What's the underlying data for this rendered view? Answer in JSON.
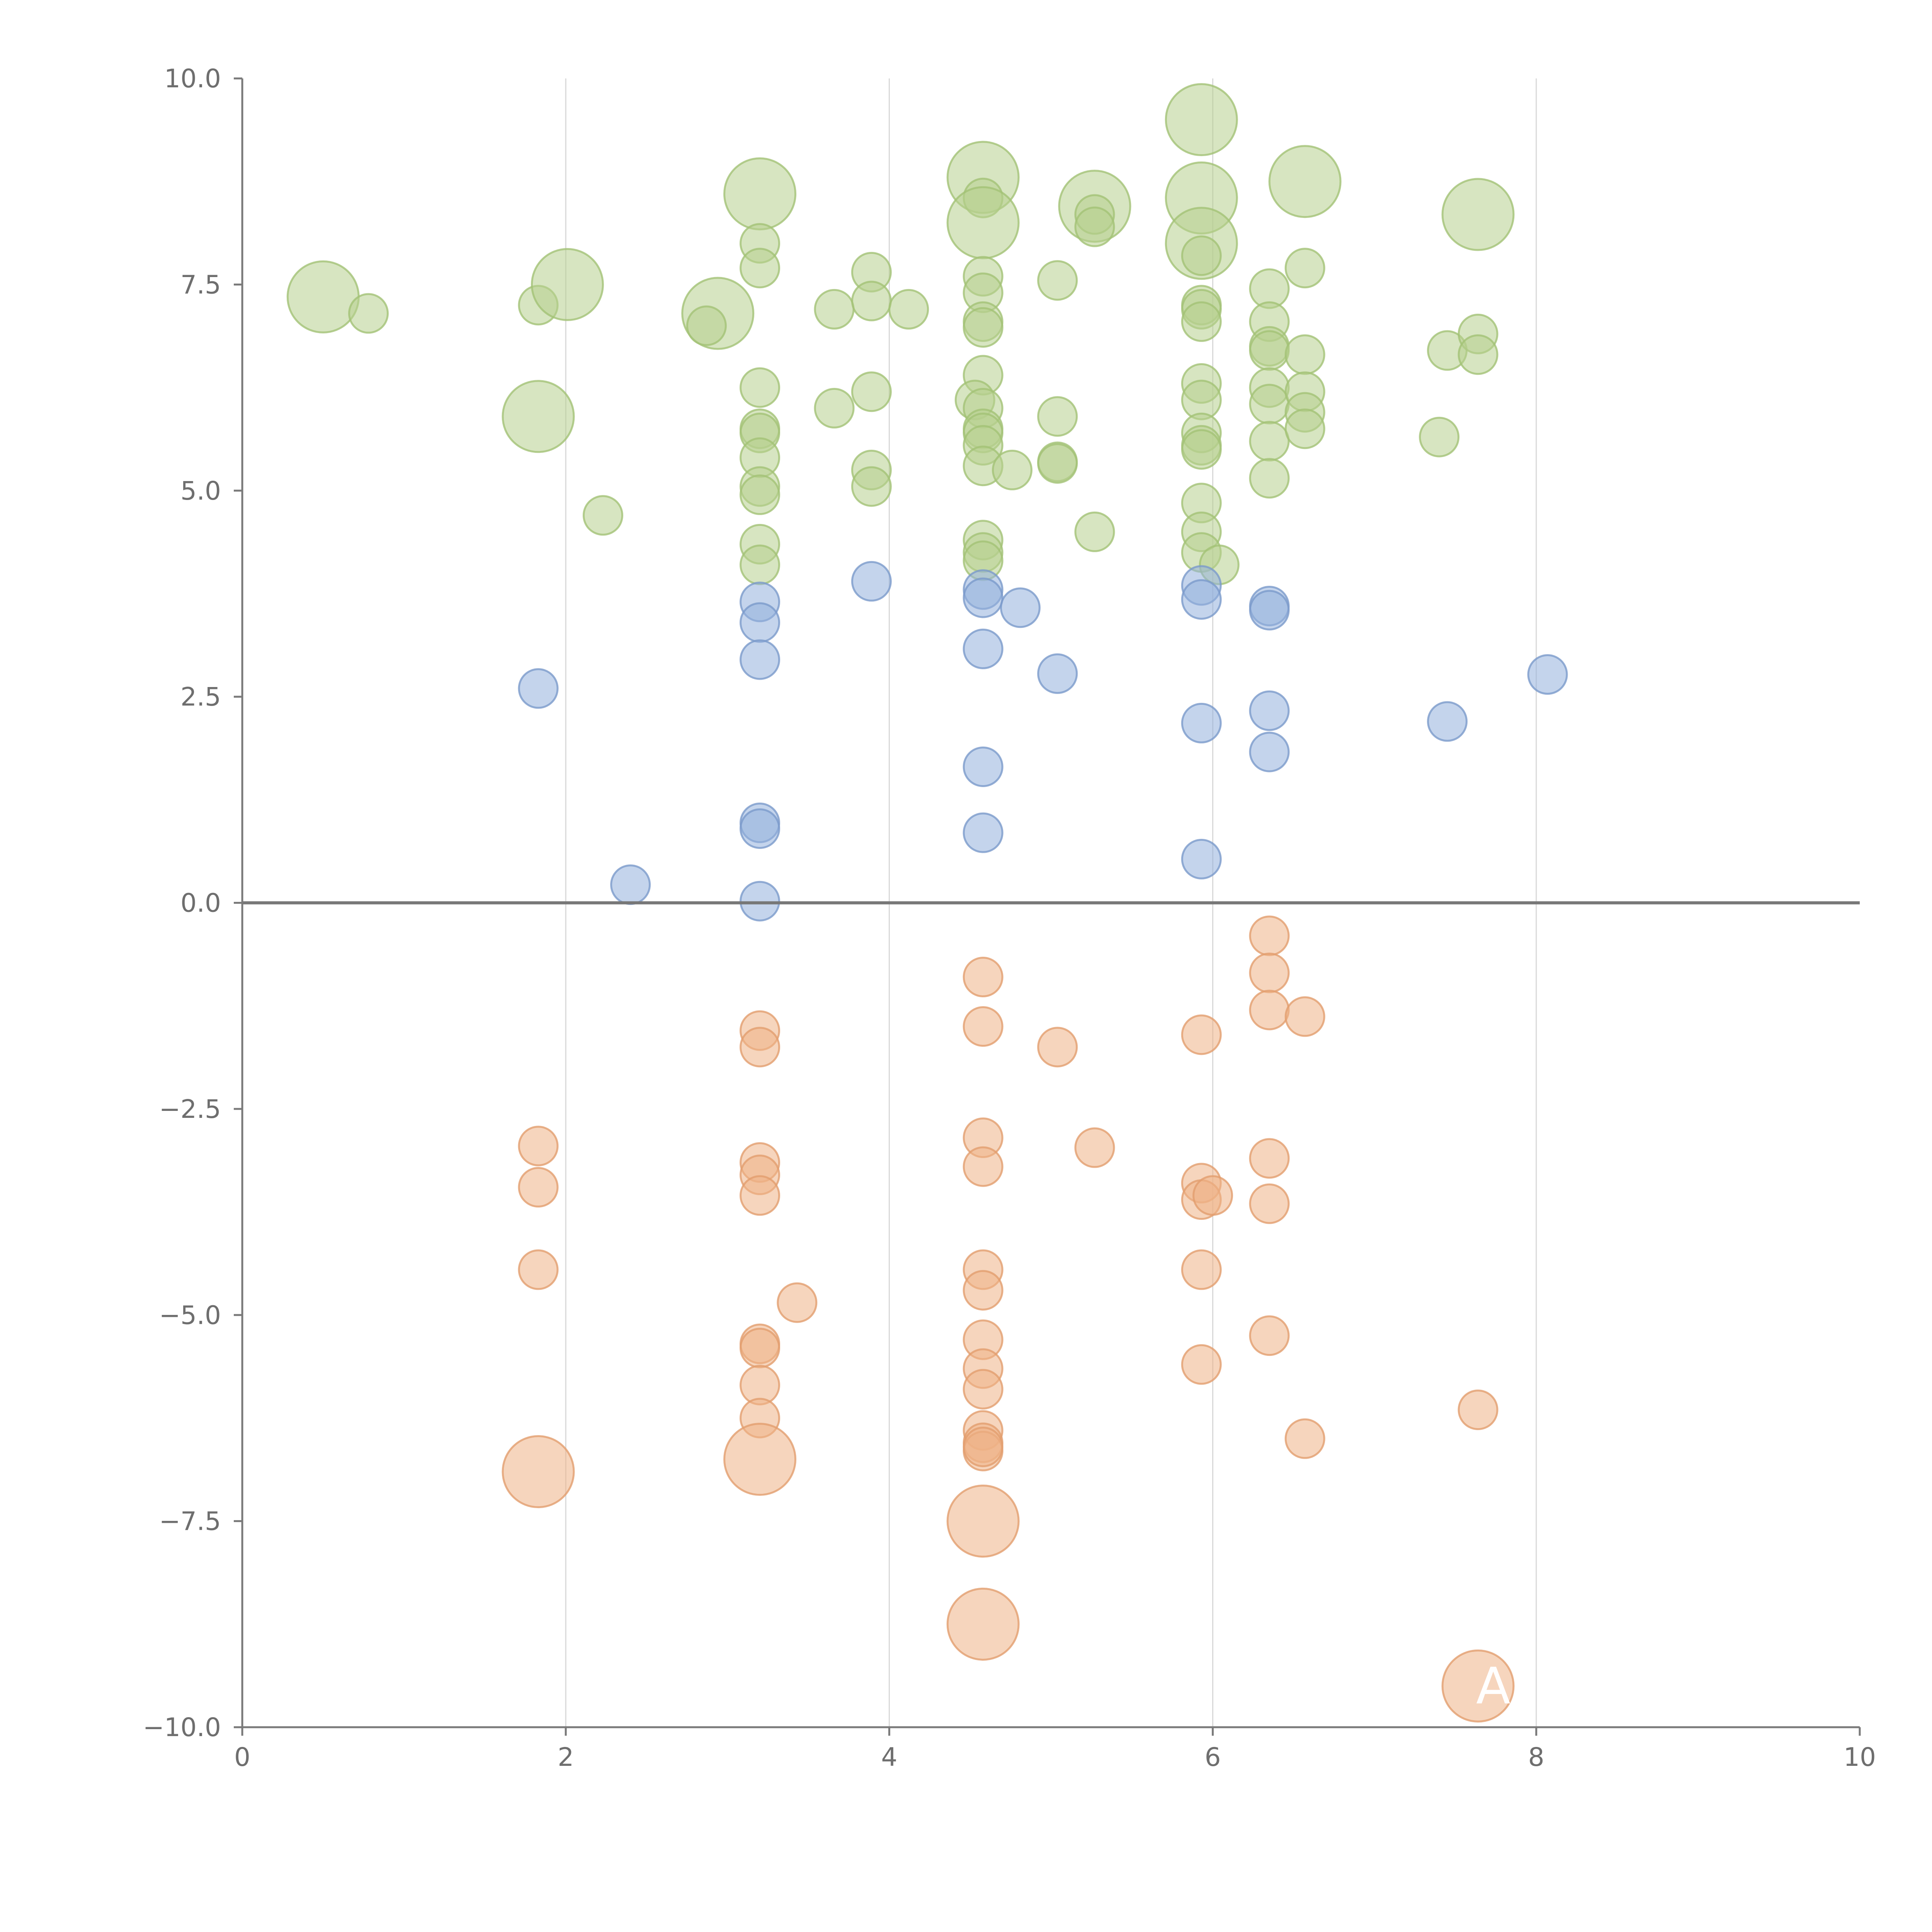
{
  "chart_data": {
    "type": "scatter",
    "title": "",
    "xlabel": "",
    "ylabel": "",
    "xlim": [
      0,
      10
    ],
    "ylim": [
      -10,
      10
    ],
    "x_ticks": [
      0,
      2,
      4,
      6,
      8,
      10
    ],
    "y_ticks": [
      -10,
      -7.5,
      -5,
      -2.5,
      0,
      2.5,
      5,
      7.5,
      10
    ],
    "x_tick_labels": [
      "0",
      "2",
      "4",
      "6",
      "8",
      "10"
    ],
    "y_tick_labels": [
      "−10.0",
      "−7.5",
      "−5.0",
      "−2.5",
      "0.0",
      "2.5",
      "5.0",
      "7.5",
      "10.0"
    ],
    "grid": "vertical",
    "zero_line": true,
    "annotation": "A",
    "series": [
      {
        "color": "#b6d08e",
        "stroke": "#a3c276",
        "points": [
          [
            0.5,
            7.35,
            2
          ],
          [
            0.78,
            7.15,
            1
          ],
          [
            1.83,
            7.25,
            1
          ],
          [
            2.01,
            7.5,
            2
          ],
          [
            1.83,
            5.9,
            2
          ],
          [
            2.23,
            4.7,
            1
          ],
          [
            2.94,
            7.15,
            2
          ],
          [
            2.87,
            7.0,
            1
          ],
          [
            3.2,
            8.6,
            2
          ],
          [
            3.2,
            8.0,
            1
          ],
          [
            3.2,
            7.7,
            1
          ],
          [
            3.2,
            6.25,
            1
          ],
          [
            3.2,
            5.75,
            1
          ],
          [
            3.2,
            5.7,
            1
          ],
          [
            3.2,
            5.4,
            1
          ],
          [
            3.2,
            5.05,
            1
          ],
          [
            3.2,
            4.95,
            1
          ],
          [
            3.2,
            4.35,
            1
          ],
          [
            3.2,
            4.1,
            1
          ],
          [
            3.66,
            7.2,
            1
          ],
          [
            3.66,
            6.0,
            1
          ],
          [
            3.89,
            7.65,
            1
          ],
          [
            3.89,
            7.3,
            1
          ],
          [
            3.89,
            6.2,
            1
          ],
          [
            3.89,
            5.25,
            1
          ],
          [
            3.89,
            5.05,
            1
          ],
          [
            4.12,
            7.2,
            1
          ],
          [
            4.58,
            8.8,
            2
          ],
          [
            4.58,
            8.55,
            1
          ],
          [
            4.58,
            8.25,
            2
          ],
          [
            4.58,
            7.6,
            1
          ],
          [
            4.58,
            7.4,
            1
          ],
          [
            4.58,
            7.05,
            1
          ],
          [
            4.58,
            6.98,
            1
          ],
          [
            4.58,
            6.4,
            1
          ],
          [
            4.53,
            6.1,
            1
          ],
          [
            4.58,
            6.0,
            1
          ],
          [
            4.58,
            5.75,
            1
          ],
          [
            4.58,
            5.7,
            1
          ],
          [
            4.58,
            5.55,
            1
          ],
          [
            4.58,
            5.3,
            1
          ],
          [
            4.58,
            4.4,
            1
          ],
          [
            4.58,
            4.25,
            1
          ],
          [
            4.58,
            4.15,
            1
          ],
          [
            4.76,
            5.25,
            1
          ],
          [
            5.04,
            7.55,
            1
          ],
          [
            5.04,
            5.9,
            1
          ],
          [
            5.04,
            5.35,
            1
          ],
          [
            5.04,
            5.33,
            1
          ],
          [
            5.27,
            8.45,
            2
          ],
          [
            5.27,
            8.35,
            1
          ],
          [
            5.27,
            8.2,
            1
          ],
          [
            5.27,
            4.5,
            1
          ],
          [
            5.93,
            9.5,
            2
          ],
          [
            5.93,
            8.55,
            2
          ],
          [
            5.93,
            8.0,
            2
          ],
          [
            5.93,
            7.85,
            1
          ],
          [
            5.93,
            7.25,
            1
          ],
          [
            5.93,
            7.2,
            1
          ],
          [
            5.93,
            7.05,
            1
          ],
          [
            5.93,
            6.3,
            1
          ],
          [
            5.93,
            6.1,
            1
          ],
          [
            5.93,
            5.7,
            1
          ],
          [
            5.93,
            5.55,
            1
          ],
          [
            5.93,
            5.5,
            1
          ],
          [
            5.93,
            4.85,
            1
          ],
          [
            5.93,
            4.5,
            1
          ],
          [
            5.93,
            4.25,
            1
          ],
          [
            6.04,
            4.1,
            1
          ],
          [
            6.35,
            7.45,
            1
          ],
          [
            6.35,
            7.05,
            1
          ],
          [
            6.35,
            6.75,
            1
          ],
          [
            6.35,
            6.7,
            1
          ],
          [
            6.35,
            6.25,
            1
          ],
          [
            6.35,
            6.05,
            1
          ],
          [
            6.35,
            5.6,
            1
          ],
          [
            6.35,
            5.15,
            1
          ],
          [
            6.57,
            8.75,
            2
          ],
          [
            6.57,
            7.7,
            1
          ],
          [
            6.57,
            6.65,
            1
          ],
          [
            6.57,
            6.2,
            1
          ],
          [
            6.57,
            5.95,
            1
          ],
          [
            6.57,
            5.75,
            1
          ],
          [
            7.4,
            5.65,
            1
          ],
          [
            7.45,
            6.7,
            1
          ],
          [
            7.64,
            8.35,
            2
          ],
          [
            7.64,
            6.9,
            1
          ],
          [
            7.64,
            6.65,
            1
          ]
        ]
      },
      {
        "color": "#94b1dc",
        "stroke": "#7a9acb",
        "points": [
          [
            1.83,
            2.6,
            1
          ],
          [
            2.4,
            0.22,
            1
          ],
          [
            3.2,
            3.65,
            1
          ],
          [
            3.2,
            3.4,
            1
          ],
          [
            3.2,
            2.95,
            1
          ],
          [
            3.2,
            0.97,
            1
          ],
          [
            3.2,
            0.9,
            1
          ],
          [
            3.2,
            0.02,
            1
          ],
          [
            3.89,
            3.9,
            1
          ],
          [
            4.58,
            3.8,
            1
          ],
          [
            4.58,
            3.7,
            1
          ],
          [
            4.58,
            3.08,
            1
          ],
          [
            4.58,
            1.65,
            1
          ],
          [
            4.58,
            0.85,
            1
          ],
          [
            4.81,
            3.58,
            1
          ],
          [
            5.04,
            2.78,
            1
          ],
          [
            5.93,
            3.85,
            1
          ],
          [
            5.93,
            3.68,
            1
          ],
          [
            5.93,
            2.18,
            1
          ],
          [
            5.93,
            0.53,
            1
          ],
          [
            6.35,
            3.6,
            1
          ],
          [
            6.35,
            3.55,
            1
          ],
          [
            6.35,
            2.33,
            1
          ],
          [
            6.35,
            1.83,
            1
          ],
          [
            7.45,
            2.2,
            1
          ],
          [
            8.07,
            2.77,
            1
          ]
        ]
      },
      {
        "color": "#eeb386",
        "stroke": "#e29e6e",
        "points": [
          [
            1.83,
            -2.95,
            1
          ],
          [
            1.83,
            -3.45,
            1
          ],
          [
            1.83,
            -4.45,
            1
          ],
          [
            1.83,
            -6.9,
            2
          ],
          [
            3.2,
            -1.55,
            1
          ],
          [
            3.2,
            -1.75,
            1
          ],
          [
            3.2,
            -3.15,
            1
          ],
          [
            3.2,
            -3.3,
            1
          ],
          [
            3.2,
            -3.55,
            1
          ],
          [
            3.2,
            -5.35,
            1
          ],
          [
            3.2,
            -5.4,
            1
          ],
          [
            3.2,
            -5.85,
            1
          ],
          [
            3.2,
            -6.25,
            1
          ],
          [
            3.2,
            -6.75,
            2
          ],
          [
            3.43,
            -4.85,
            1
          ],
          [
            4.58,
            -0.9,
            1
          ],
          [
            4.58,
            -1.5,
            1
          ],
          [
            4.58,
            -2.85,
            1
          ],
          [
            4.58,
            -3.2,
            1
          ],
          [
            4.58,
            -4.45,
            1
          ],
          [
            4.58,
            -4.7,
            1
          ],
          [
            4.58,
            -5.3,
            1
          ],
          [
            4.58,
            -5.65,
            1
          ],
          [
            4.58,
            -5.9,
            1
          ],
          [
            4.58,
            -6.4,
            1
          ],
          [
            4.58,
            -6.55,
            1
          ],
          [
            4.58,
            -6.65,
            1
          ],
          [
            4.58,
            -6.6,
            1
          ],
          [
            4.58,
            -7.5,
            2
          ],
          [
            4.58,
            -8.75,
            2
          ],
          [
            5.04,
            -1.75,
            1
          ],
          [
            5.27,
            -2.97,
            1
          ],
          [
            5.93,
            -1.6,
            1
          ],
          [
            5.93,
            -3.4,
            1
          ],
          [
            5.93,
            -3.6,
            1
          ],
          [
            6.0,
            -3.55,
            1
          ],
          [
            5.93,
            -4.45,
            1
          ],
          [
            5.93,
            -5.6,
            1
          ],
          [
            6.35,
            -0.4,
            1
          ],
          [
            6.35,
            -0.85,
            1
          ],
          [
            6.35,
            -1.3,
            1
          ],
          [
            6.35,
            -3.1,
            1
          ],
          [
            6.35,
            -3.65,
            1
          ],
          [
            6.35,
            -5.25,
            1
          ],
          [
            6.57,
            -1.38,
            1
          ],
          [
            6.57,
            -6.5,
            1
          ],
          [
            7.64,
            -6.15,
            1
          ],
          [
            7.64,
            -9.5,
            2
          ]
        ]
      }
    ]
  }
}
